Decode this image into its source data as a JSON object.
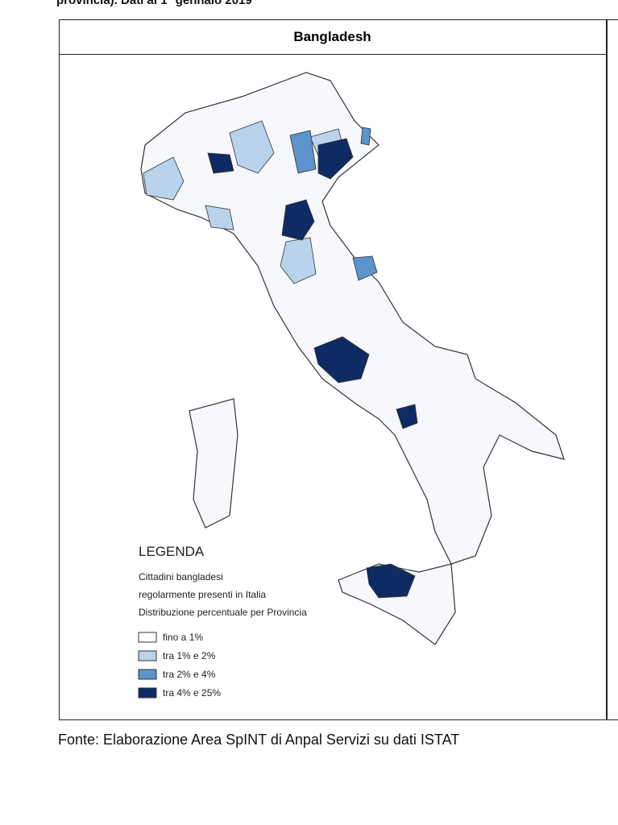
{
  "caption": "provincia). Dati al 1° gennaio 2019",
  "table": {
    "header": "Bangladesh"
  },
  "legend": {
    "title": "LEGENDA",
    "description": [
      "Cittadini bangladesi",
      "regolarmente presenti in Italia",
      "Distribuzione percentuale per Provincia"
    ],
    "items": [
      "fino a 1%",
      "tra 1% e 2%",
      "tra 2% e 4%",
      "tra 4% e 25%"
    ]
  },
  "source": "Fonte: Elaborazione Area SpINT di Anpal Servizi su dati ISTAT"
}
